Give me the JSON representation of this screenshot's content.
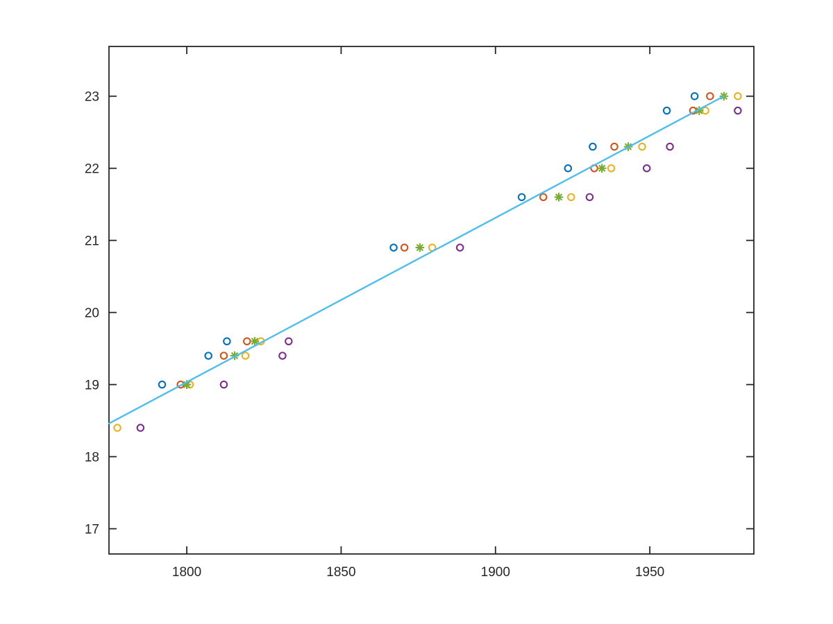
{
  "figure": {
    "background_color": "#ffffff",
    "title": "",
    "axes": {
      "frame_color": "#262626",
      "tick_color": "#262626",
      "tick_label_color": "#262626",
      "tick_direction": "in",
      "box": "on",
      "grid": false,
      "xlim": [
        1774.8,
        1983.7
      ],
      "ylim": [
        16.65,
        23.69
      ],
      "x_tick_values": [
        1800,
        1850,
        1900,
        1950
      ],
      "x_tick_labels": [
        "1800",
        "1850",
        "1900",
        "1950"
      ],
      "y_tick_values": [
        17,
        18,
        19,
        20,
        21,
        22,
        23
      ],
      "y_tick_labels": [
        "17",
        "18",
        "19",
        "20",
        "21",
        "22",
        "23"
      ]
    }
  },
  "chart_data": {
    "type": "scatter",
    "title": "",
    "xlabel": "",
    "ylabel": "",
    "grid": false,
    "legend_position": "none",
    "axis_ranges": {
      "x": [
        1774.8,
        1983.7
      ],
      "y": [
        16.65,
        23.69
      ]
    },
    "series": [
      {
        "name": "series-1-blue-circles",
        "marker": "circle",
        "color": "#0072BD",
        "points": [
          [
            1792,
            19.0
          ],
          [
            1807,
            19.4
          ],
          [
            1813,
            19.6
          ],
          [
            1867,
            20.9
          ],
          [
            1908.5,
            21.6
          ],
          [
            1923.5,
            22.0
          ],
          [
            1931.5,
            22.3
          ],
          [
            1955.5,
            22.8
          ],
          [
            1964.5,
            23.0
          ]
        ]
      },
      {
        "name": "series-2-orange-circles",
        "marker": "circle",
        "color": "#D95319",
        "points": [
          [
            1798,
            19.0
          ],
          [
            1812,
            19.4
          ],
          [
            1819.5,
            19.6
          ],
          [
            1870.5,
            20.9
          ],
          [
            1915.5,
            21.6
          ],
          [
            1932,
            22.0
          ],
          [
            1938.5,
            22.3
          ],
          [
            1964,
            22.8
          ],
          [
            1969.5,
            23.0
          ]
        ]
      },
      {
        "name": "series-3-yellow-circles",
        "marker": "circle",
        "color": "#EDB120",
        "points": [
          [
            1777.5,
            18.4
          ],
          [
            1801,
            19.0
          ],
          [
            1819,
            19.4
          ],
          [
            1824,
            19.6
          ],
          [
            1879.5,
            20.9
          ],
          [
            1924.5,
            21.6
          ],
          [
            1937.5,
            22.0
          ],
          [
            1947.5,
            22.3
          ],
          [
            1968,
            22.8
          ],
          [
            1978.5,
            23.0
          ]
        ]
      },
      {
        "name": "series-4-purple-circles",
        "marker": "circle",
        "color": "#7E2F8E",
        "points": [
          [
            1785,
            18.4
          ],
          [
            1812,
            19.0
          ],
          [
            1831,
            19.4
          ],
          [
            1833,
            19.6
          ],
          [
            1888.5,
            20.9
          ],
          [
            1930.5,
            21.6
          ],
          [
            1949,
            22.0
          ],
          [
            1956.5,
            22.3
          ],
          [
            1978.5,
            22.8
          ]
        ]
      },
      {
        "name": "series-5-green-asterisks",
        "marker": "asterisk",
        "color": "#77AC30",
        "points": [
          [
            1800,
            19.0
          ],
          [
            1815.5,
            19.4
          ],
          [
            1822,
            19.6
          ],
          [
            1875.5,
            20.9
          ],
          [
            1920.5,
            21.6
          ],
          [
            1934.5,
            22.0
          ],
          [
            1943,
            22.3
          ],
          [
            1966,
            22.8
          ],
          [
            1974,
            23.0
          ]
        ]
      }
    ],
    "fit_line": {
      "name": "linear-fit-line",
      "color": "#4DBEEE",
      "points": [
        [
          1774.8,
          18.46
        ],
        [
          1974,
          23.0
        ]
      ]
    }
  }
}
